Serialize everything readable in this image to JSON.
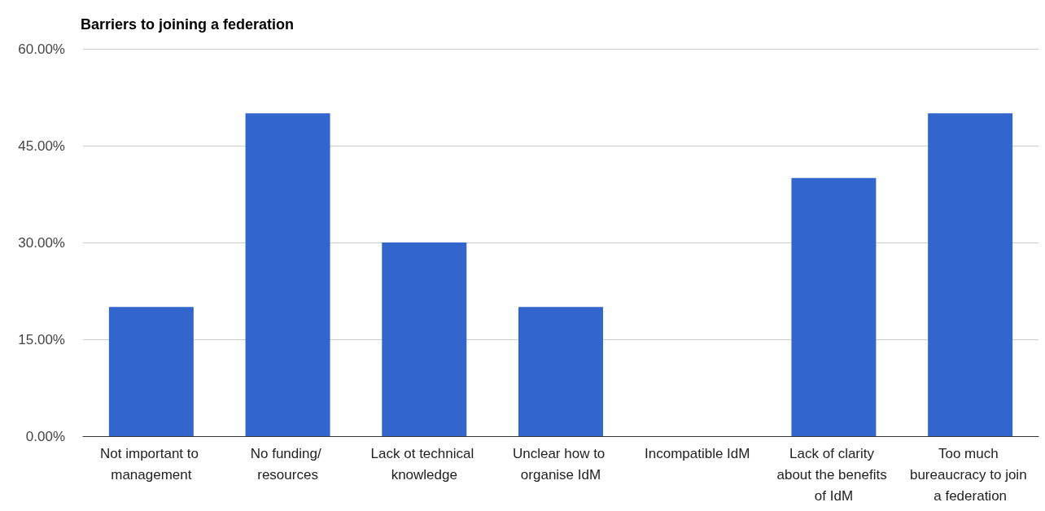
{
  "chart_data": {
    "type": "bar",
    "title": "Barriers to joining a federation",
    "categories": [
      "Not important to management",
      "No funding/ resources",
      "Lack ot technical knowledge",
      "Unclear how to organise IdM",
      "Incompatible IdM",
      "Lack of clarity about the benefits of IdM",
      "Too much bureaucracy to join a federation"
    ],
    "values": [
      20,
      50,
      30,
      20,
      0,
      40,
      50
    ],
    "color": "#3366cc",
    "ylim": [
      0,
      60
    ],
    "yticks": [
      {
        "value": 0,
        "label": "0.00%"
      },
      {
        "value": 15,
        "label": "15.00%"
      },
      {
        "value": 30,
        "label": "30.00%"
      },
      {
        "value": 45,
        "label": "45.00%"
      },
      {
        "value": 60,
        "label": "60.00%"
      }
    ],
    "grid": "y"
  }
}
